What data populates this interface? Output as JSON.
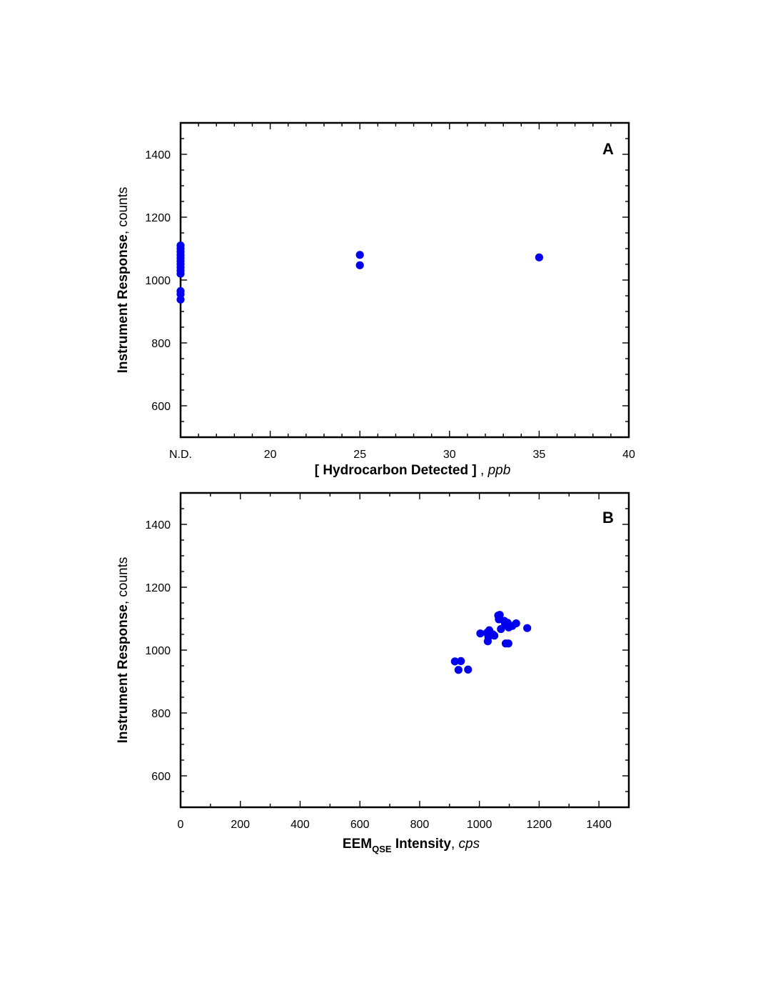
{
  "chart_data": [
    {
      "type": "scatter",
      "panel_label": "A",
      "xlabel": {
        "main": "[ Hydrocarbon Detected ]",
        "sep": " , ",
        "unit": "ppb"
      },
      "ylabel": {
        "main": "Instrument Response",
        "sep": ", ",
        "unit": "counts"
      },
      "xlim": [
        15,
        40
      ],
      "ylim": [
        500,
        1500
      ],
      "xticks": [
        {
          "value": 15,
          "label": "N.D."
        },
        {
          "value": 20,
          "label": "20"
        },
        {
          "value": 25,
          "label": "25"
        },
        {
          "value": 30,
          "label": "30"
        },
        {
          "value": 35,
          "label": "35"
        },
        {
          "value": 40,
          "label": "40"
        }
      ],
      "yticks": [
        600,
        800,
        1000,
        1200,
        1400
      ],
      "marker_color": "#0000ee",
      "points": [
        [
          15,
          1110
        ],
        [
          15,
          1100
        ],
        [
          15,
          1090
        ],
        [
          15,
          1080
        ],
        [
          15,
          1070
        ],
        [
          15,
          1060
        ],
        [
          15,
          1050
        ],
        [
          15,
          1040
        ],
        [
          15,
          1030
        ],
        [
          15,
          1020
        ],
        [
          15,
          965
        ],
        [
          15,
          955
        ],
        [
          15,
          938
        ],
        [
          25,
          1080
        ],
        [
          25,
          1047
        ],
        [
          35,
          1072
        ]
      ]
    },
    {
      "type": "scatter",
      "panel_label": "B",
      "xlabel": {
        "main": "EEM",
        "sub": "QSE",
        "main2": " Intensity",
        "sep": ", ",
        "unit": "cps"
      },
      "ylabel": {
        "main": "Instrument Response",
        "sep": ", ",
        "unit": "counts"
      },
      "xlim": [
        0,
        1500
      ],
      "ylim": [
        500,
        1500
      ],
      "xticks": [
        {
          "value": 0,
          "label": "0"
        },
        {
          "value": 200,
          "label": "200"
        },
        {
          "value": 400,
          "label": "400"
        },
        {
          "value": 600,
          "label": "600"
        },
        {
          "value": 800,
          "label": "800"
        },
        {
          "value": 1000,
          "label": "1000"
        },
        {
          "value": 1200,
          "label": "1200"
        },
        {
          "value": 1400,
          "label": "1400"
        }
      ],
      "yticks": [
        600,
        800,
        1000,
        1200,
        1400
      ],
      "marker_color": "#0000ee",
      "points": [
        [
          918,
          964
        ],
        [
          938,
          965
        ],
        [
          930,
          937
        ],
        [
          962,
          938
        ],
        [
          1003,
          1053
        ],
        [
          1025,
          1055
        ],
        [
          1030,
          1042
        ],
        [
          1033,
          1063
        ],
        [
          1028,
          1028
        ],
        [
          1045,
          1050
        ],
        [
          1050,
          1046
        ],
        [
          1063,
          1110
        ],
        [
          1068,
          1112
        ],
        [
          1065,
          1098
        ],
        [
          1072,
          1067
        ],
        [
          1083,
          1093
        ],
        [
          1086,
          1082
        ],
        [
          1094,
          1087
        ],
        [
          1098,
          1072
        ],
        [
          1110,
          1077
        ],
        [
          1123,
          1085
        ],
        [
          1088,
          1021
        ],
        [
          1097,
          1021
        ],
        [
          1160,
          1070
        ]
      ]
    }
  ]
}
